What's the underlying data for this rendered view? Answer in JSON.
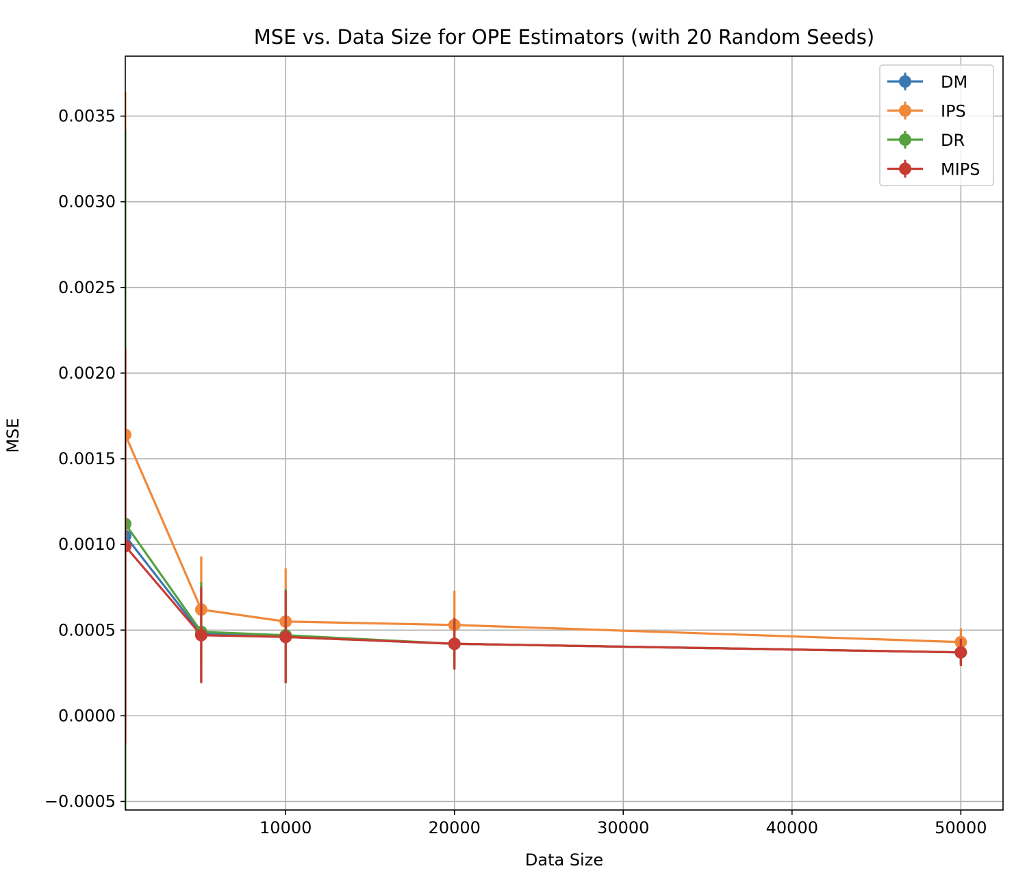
{
  "chart_data": {
    "type": "line",
    "title": "MSE vs. Data Size for OPE Estimators (with 20 Random Seeds)",
    "xlabel": "Data Size",
    "ylabel": "MSE",
    "x": [
      500,
      5000,
      10000,
      20000,
      50000
    ],
    "xlim": [
      500,
      52500
    ],
    "ylim": [
      -0.00055,
      0.00385
    ],
    "xticks": [
      10000,
      20000,
      30000,
      40000,
      50000
    ],
    "xtick_labels": [
      "10000",
      "20000",
      "30000",
      "40000",
      "50000"
    ],
    "yticks": [
      -0.0005,
      0.0,
      0.0005,
      0.001,
      0.0015,
      0.002,
      0.0025,
      0.003,
      0.0035
    ],
    "ytick_labels": [
      "−0.0005",
      "0.0000",
      "0.0005",
      "0.0010",
      "0.0015",
      "0.0020",
      "0.0025",
      "0.0030",
      "0.0035"
    ],
    "grid": true,
    "legend_position": "top-right",
    "series": [
      {
        "name": "DM",
        "color": "#3a78b4",
        "values": [
          0.00105,
          0.00048,
          0.00046,
          0.00042,
          0.00037
        ],
        "errors": [
          0.0011,
          0.00028,
          0.00027,
          0.00014,
          7e-05
        ]
      },
      {
        "name": "IPS",
        "color": "#f0883a",
        "values": [
          0.00164,
          0.00062,
          0.00055,
          0.00053,
          0.00043
        ],
        "errors": [
          0.002,
          0.00031,
          0.00031,
          0.0002,
          8e-05
        ]
      },
      {
        "name": "DR",
        "color": "#55a13f",
        "values": [
          0.00112,
          0.00049,
          0.00047,
          0.00042,
          0.00037
        ],
        "errors": [
          0.0023,
          0.00029,
          0.00027,
          0.00014,
          7e-05
        ]
      },
      {
        "name": "MIPS",
        "color": "#c83b33",
        "values": [
          0.00099,
          0.00047,
          0.00046,
          0.00042,
          0.00037
        ],
        "errors": [
          0.00115,
          0.00028,
          0.00027,
          0.00015,
          8e-05
        ]
      }
    ]
  }
}
